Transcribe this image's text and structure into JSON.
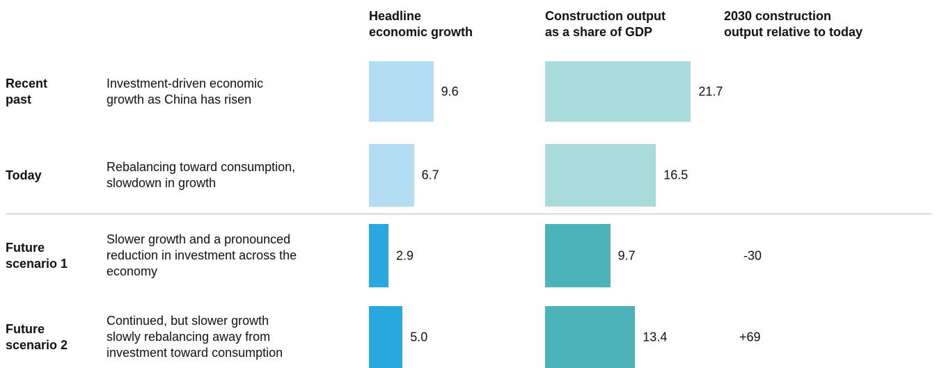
{
  "columns": [
    "Headline\neconomic growth",
    "Construction output\nas a share of GDP",
    "2030 construction\noutput relative to today"
  ],
  "rows": [
    {
      "label": "Recent\npast",
      "description": "Investment-driven economic\ngrowth as China has risen",
      "growth": 9.6,
      "construction": 21.7,
      "relative": null,
      "colors": [
        "#b3ddf3",
        "#a9dbdc"
      ]
    },
    {
      "label": "Today",
      "description": "Rebalancing toward consumption,\nslowdown in growth",
      "growth": 6.7,
      "construction": 16.5,
      "relative": null,
      "colors": [
        "#b3ddf3",
        "#a9dbdc"
      ]
    },
    {
      "label": "Future\nscenario 1",
      "description": "Slower growth and a pronounced\nreduction in investment across the\neconomy",
      "growth": 2.9,
      "construction": 9.7,
      "relative": -30,
      "colors": [
        "#29a8df",
        "#4bb3b9"
      ]
    },
    {
      "label": "Future\nscenario 2",
      "description": "Continued, but slower growth\nslowly rebalancing away from\ninvestment toward consumption",
      "growth": {
        "value": 5.0,
        "label": "5.0"
      },
      "construction": 13.4,
      "relative": {
        "value": 69,
        "label": "+69"
      },
      "colors": [
        "#29a8df",
        "#4bb3b9"
      ]
    }
  ]
}
